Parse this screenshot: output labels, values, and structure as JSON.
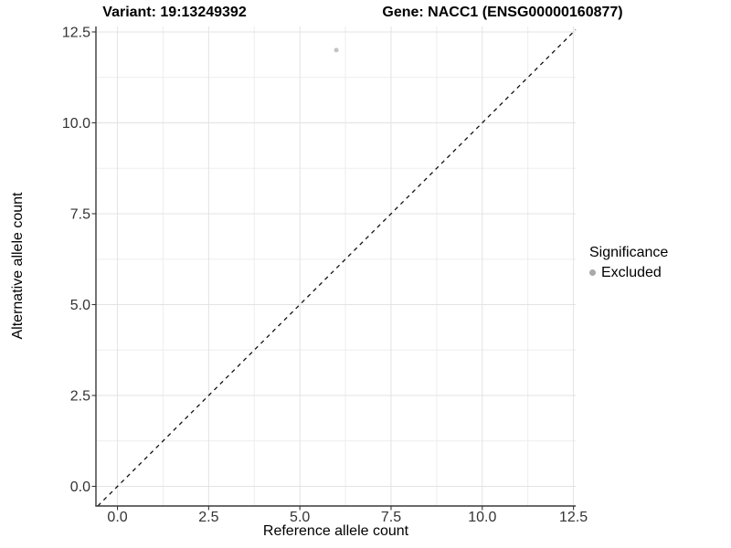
{
  "chart_data": {
    "type": "scatter",
    "title_left": "Variant: 19:13249392",
    "title_right": "Gene: NACC1 (ENSG00000160877)",
    "xlabel": "Reference allele count",
    "ylabel": "Alternative allele count",
    "xlim": [
      -0.59,
      12.56
    ],
    "ylim": [
      -0.54,
      12.65
    ],
    "xticks": {
      "values": [
        0,
        2.5,
        5,
        7.5,
        10,
        12.5
      ],
      "labels": [
        "0.0",
        "2.5",
        "5.0",
        "7.5",
        "10.0",
        "12.5"
      ]
    },
    "yticks": {
      "values": [
        0,
        2.5,
        5,
        7.5,
        10,
        12.5
      ],
      "labels": [
        "0.0",
        "2.5",
        "5.0",
        "7.5",
        "10.0",
        "12.5"
      ]
    },
    "minor_ticks": [
      1.25,
      3.75,
      6.25,
      8.75,
      11.25
    ],
    "grid": "major+minor",
    "series": [
      {
        "name": "Excluded",
        "color": "#c3c3c3",
        "points": [
          {
            "x": 6,
            "y": 12
          }
        ]
      }
    ],
    "reference_line": {
      "kind": "identity",
      "equation": "y = x",
      "style": "dashed",
      "color": "#111111"
    },
    "legend": {
      "title": "Significance",
      "position": "right",
      "items": [
        {
          "label": "Excluded",
          "color": "#a9a9a9"
        }
      ]
    },
    "colors": {
      "axis_line": "#383838",
      "axis_text": "#333333",
      "grid_major": "#e3e3e3",
      "grid_minor": "#ededed",
      "background": "#ffffff"
    }
  }
}
